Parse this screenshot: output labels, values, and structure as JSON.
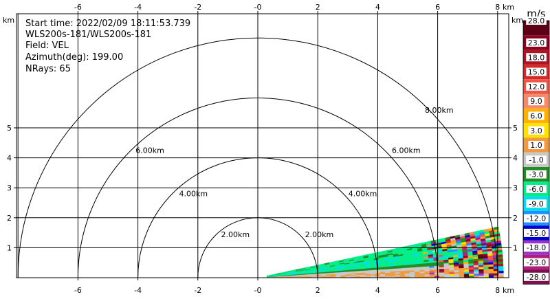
{
  "info": {
    "start_time": "Start time: 2022/02/09 18:11:53.739",
    "instrument": "WLS200s-181/WLS200s-181",
    "field": "Field: VEL",
    "azimuth": "Azimuth(deg): 199.00",
    "nrays": "NRays: 65"
  },
  "axes": {
    "x_unit": "km",
    "y_unit": "km",
    "x_ticks": [
      "-6",
      "-4",
      "-2",
      "-0",
      "2",
      "4",
      "6",
      "8"
    ],
    "y_ticks": [
      "1",
      "2",
      "3",
      "4",
      "5"
    ],
    "xlim": [
      -8.5,
      8.5
    ],
    "ylim": [
      0,
      6
    ]
  },
  "range_rings": [
    {
      "radius": 2,
      "label": "2.00km"
    },
    {
      "radius": 4,
      "label": "4.00km"
    },
    {
      "radius": 6,
      "label": "6.00km"
    },
    {
      "radius": 8,
      "label": "8.00km"
    }
  ],
  "colorbar": {
    "title": "m/s",
    "labels": [
      "28.0",
      "23.0",
      "18.0",
      "15.0",
      "12.0",
      "9.0",
      "6.0",
      "3.0",
      "1.0",
      "-1.0",
      "-3.0",
      "-6.0",
      "-9.0",
      "-12.0",
      "-15.0",
      "-18.0",
      "-23.0",
      "-28.0"
    ],
    "colors": [
      "#5c0018",
      "#8c0022",
      "#b01420",
      "#d22b2b",
      "#ee5544",
      "#f58a6a",
      "#ffb000",
      "#ffe000",
      "#f09a40",
      "#c8c8c8",
      "#228b22",
      "#00ee88",
      "#00ddee",
      "#1e90ff",
      "#0000cc",
      "#9933cc",
      "#b0207a",
      "#7a1050"
    ]
  },
  "chart_data": {
    "type": "heatmap",
    "field": "VEL",
    "units": "m/s",
    "azimuth_deg": 199.0,
    "nrays": 65,
    "elevation_range_deg": [
      0,
      12
    ],
    "range_km": [
      0.3,
      8.2
    ],
    "bands": [
      {
        "range_km": [
          0.3,
          2.0
        ],
        "dominant_value_ms": -1.0
      },
      {
        "range_km": [
          2.0,
          5.5
        ],
        "dominant_value_ms": -6.0
      },
      {
        "range_km": [
          5.5,
          8.2
        ],
        "dominant_value_ms": "mixed"
      }
    ]
  }
}
